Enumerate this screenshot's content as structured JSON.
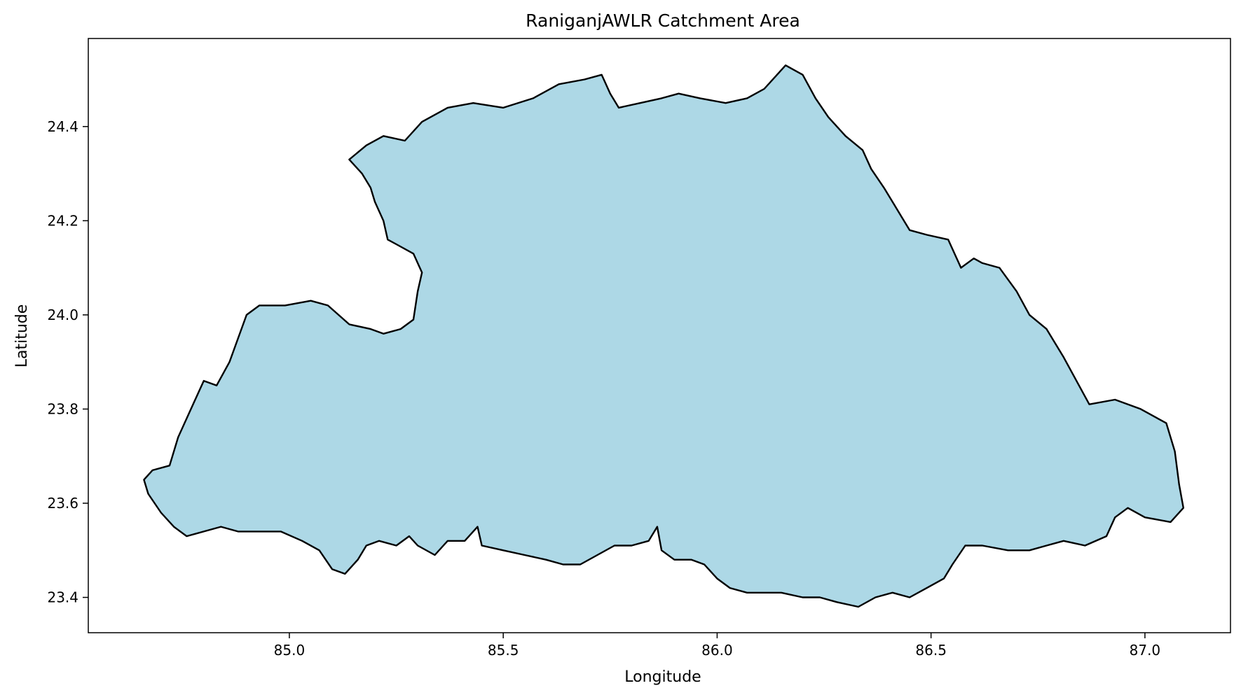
{
  "map": {
    "title": "RaniganjAWLR Catchment Area",
    "xlabel": "Longitude",
    "ylabel": "Latitude",
    "xlim": [
      84.53,
      87.2
    ],
    "ylim": [
      23.325,
      24.587
    ],
    "xticks": [
      85.0,
      85.5,
      86.0,
      86.5,
      87.0
    ],
    "yticks": [
      23.4,
      23.6,
      23.8,
      24.0,
      24.2,
      24.4
    ],
    "xtick_labels": [
      "85.0",
      "85.5",
      "86.0",
      "86.5",
      "87.0"
    ],
    "ytick_labels": [
      "23.4",
      "23.6",
      "23.8",
      "24.0",
      "24.2",
      "24.4"
    ],
    "fill_color": "#add8e6",
    "edge_color": "#000000",
    "boundary": [
      [
        84.66,
        23.65
      ],
      [
        84.68,
        23.67
      ],
      [
        84.72,
        23.68
      ],
      [
        84.74,
        23.74
      ],
      [
        84.77,
        23.8
      ],
      [
        84.8,
        23.86
      ],
      [
        84.83,
        23.85
      ],
      [
        84.86,
        23.9
      ],
      [
        84.88,
        23.95
      ],
      [
        84.9,
        24.0
      ],
      [
        84.93,
        24.02
      ],
      [
        84.99,
        24.02
      ],
      [
        85.05,
        24.03
      ],
      [
        85.09,
        24.02
      ],
      [
        85.14,
        23.98
      ],
      [
        85.19,
        23.97
      ],
      [
        85.22,
        23.96
      ],
      [
        85.26,
        23.97
      ],
      [
        85.29,
        23.99
      ],
      [
        85.3,
        24.05
      ],
      [
        85.31,
        24.09
      ],
      [
        85.29,
        24.13
      ],
      [
        85.25,
        24.15
      ],
      [
        85.23,
        24.16
      ],
      [
        85.22,
        24.2
      ],
      [
        85.2,
        24.24
      ],
      [
        85.19,
        24.27
      ],
      [
        85.17,
        24.3
      ],
      [
        85.14,
        24.33
      ],
      [
        85.18,
        24.36
      ],
      [
        85.22,
        24.38
      ],
      [
        85.27,
        24.37
      ],
      [
        85.31,
        24.41
      ],
      [
        85.37,
        24.44
      ],
      [
        85.43,
        24.45
      ],
      [
        85.5,
        24.44
      ],
      [
        85.57,
        24.46
      ],
      [
        85.63,
        24.49
      ],
      [
        85.69,
        24.5
      ],
      [
        85.73,
        24.51
      ],
      [
        85.75,
        24.47
      ],
      [
        85.77,
        24.44
      ],
      [
        85.82,
        24.45
      ],
      [
        85.87,
        24.46
      ],
      [
        85.91,
        24.47
      ],
      [
        85.96,
        24.46
      ],
      [
        86.02,
        24.45
      ],
      [
        86.07,
        24.46
      ],
      [
        86.11,
        24.48
      ],
      [
        86.14,
        24.51
      ],
      [
        86.16,
        24.53
      ],
      [
        86.2,
        24.51
      ],
      [
        86.23,
        24.46
      ],
      [
        86.26,
        24.42
      ],
      [
        86.3,
        24.38
      ],
      [
        86.34,
        24.35
      ],
      [
        86.36,
        24.31
      ],
      [
        86.39,
        24.27
      ],
      [
        86.41,
        24.24
      ],
      [
        86.43,
        24.21
      ],
      [
        86.45,
        24.18
      ],
      [
        86.49,
        24.17
      ],
      [
        86.54,
        24.16
      ],
      [
        86.57,
        24.1
      ],
      [
        86.6,
        24.12
      ],
      [
        86.62,
        24.11
      ],
      [
        86.66,
        24.1
      ],
      [
        86.7,
        24.05
      ],
      [
        86.73,
        24.0
      ],
      [
        86.77,
        23.97
      ],
      [
        86.81,
        23.91
      ],
      [
        86.84,
        23.86
      ],
      [
        86.87,
        23.81
      ],
      [
        86.93,
        23.82
      ],
      [
        86.99,
        23.8
      ],
      [
        87.05,
        23.77
      ],
      [
        87.07,
        23.71
      ],
      [
        87.08,
        23.64
      ],
      [
        87.09,
        23.59
      ],
      [
        87.06,
        23.56
      ],
      [
        87.0,
        23.57
      ],
      [
        86.96,
        23.59
      ],
      [
        86.93,
        23.57
      ],
      [
        86.91,
        23.53
      ],
      [
        86.86,
        23.51
      ],
      [
        86.81,
        23.52
      ],
      [
        86.77,
        23.51
      ],
      [
        86.73,
        23.5
      ],
      [
        86.68,
        23.5
      ],
      [
        86.62,
        23.51
      ],
      [
        86.58,
        23.51
      ],
      [
        86.55,
        23.47
      ],
      [
        86.53,
        23.44
      ],
      [
        86.49,
        23.42
      ],
      [
        86.45,
        23.4
      ],
      [
        86.41,
        23.41
      ],
      [
        86.37,
        23.4
      ],
      [
        86.33,
        23.38
      ],
      [
        86.28,
        23.39
      ],
      [
        86.24,
        23.4
      ],
      [
        86.2,
        23.4
      ],
      [
        86.15,
        23.41
      ],
      [
        86.11,
        23.41
      ],
      [
        86.07,
        23.41
      ],
      [
        86.03,
        23.42
      ],
      [
        86.0,
        23.44
      ],
      [
        85.97,
        23.47
      ],
      [
        85.94,
        23.48
      ],
      [
        85.9,
        23.48
      ],
      [
        85.87,
        23.5
      ],
      [
        85.86,
        23.55
      ],
      [
        85.84,
        23.52
      ],
      [
        85.8,
        23.51
      ],
      [
        85.76,
        23.51
      ],
      [
        85.72,
        23.49
      ],
      [
        85.68,
        23.47
      ],
      [
        85.64,
        23.47
      ],
      [
        85.6,
        23.48
      ],
      [
        85.55,
        23.49
      ],
      [
        85.5,
        23.5
      ],
      [
        85.45,
        23.51
      ],
      [
        85.44,
        23.55
      ],
      [
        85.41,
        23.52
      ],
      [
        85.37,
        23.52
      ],
      [
        85.34,
        23.49
      ],
      [
        85.3,
        23.51
      ],
      [
        85.28,
        23.53
      ],
      [
        85.25,
        23.51
      ],
      [
        85.21,
        23.52
      ],
      [
        85.18,
        23.51
      ],
      [
        85.16,
        23.48
      ],
      [
        85.13,
        23.45
      ],
      [
        85.1,
        23.46
      ],
      [
        85.07,
        23.5
      ],
      [
        85.03,
        23.52
      ],
      [
        84.98,
        23.54
      ],
      [
        84.93,
        23.54
      ],
      [
        84.88,
        23.54
      ],
      [
        84.84,
        23.55
      ],
      [
        84.8,
        23.54
      ],
      [
        84.76,
        23.53
      ],
      [
        84.73,
        23.55
      ],
      [
        84.7,
        23.58
      ],
      [
        84.67,
        23.62
      ]
    ]
  }
}
